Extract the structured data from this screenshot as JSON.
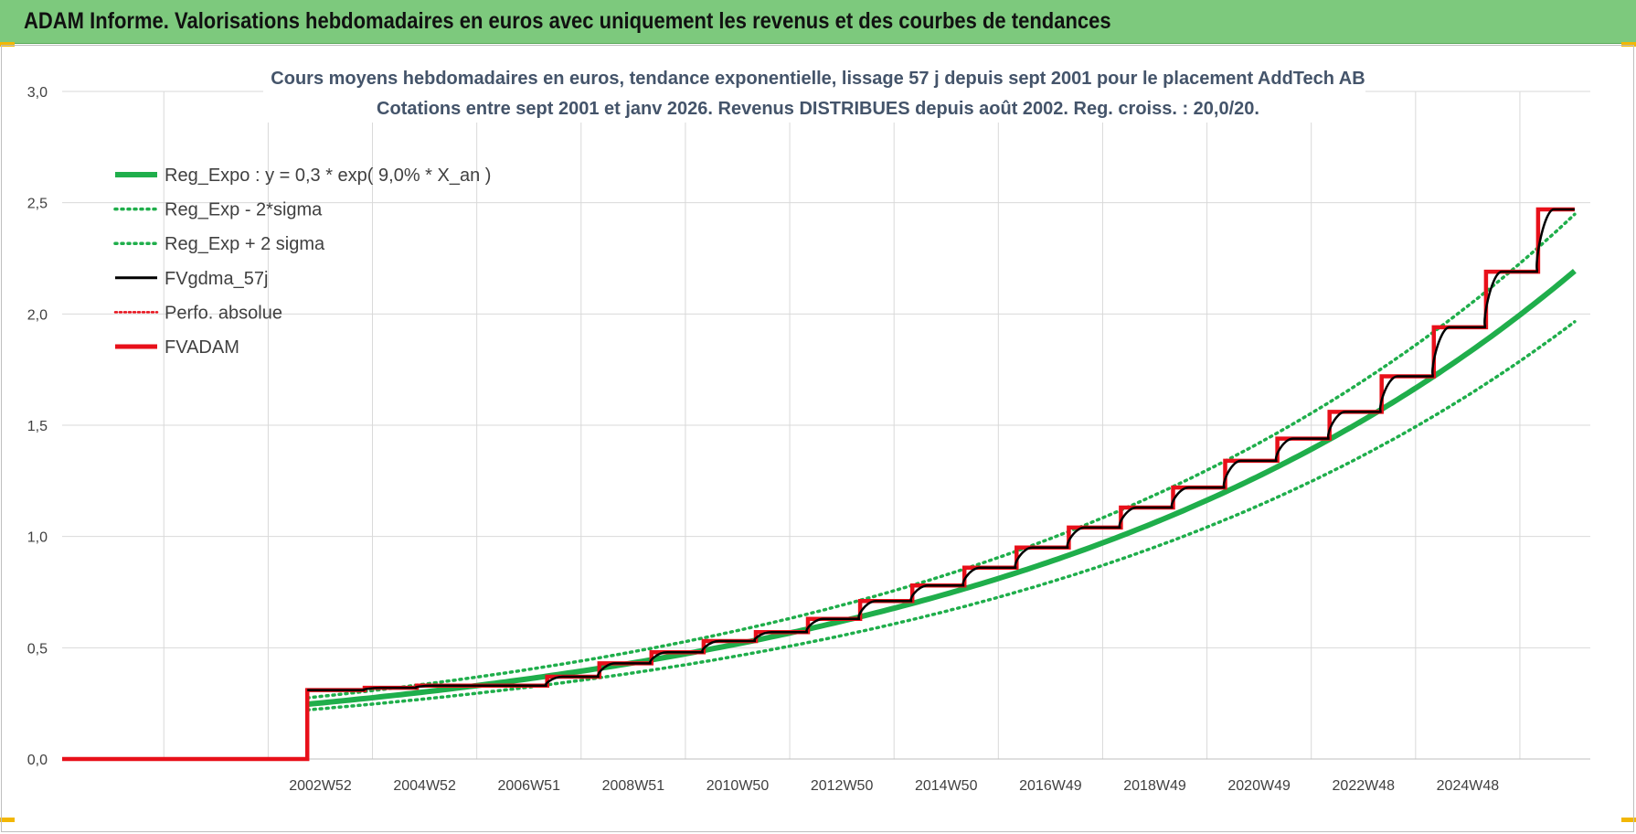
{
  "header": {
    "title": "ADAM Informe. Valorisations hebdomadaires en euros avec uniquement les revenus et des courbes de tendances"
  },
  "chart_data": {
    "type": "line",
    "title": "Cours moyens hebdomadaires en euros, tendance exponentielle, lissage 57 j depuis sept 2001 pour le placement AddTech AB",
    "subtitle": "Cotations entre sept 2001 et janv 2026. Revenus DISTRIBUES depuis août 2002. Reg. croiss. : 20,0/20.",
    "xlabel": "",
    "ylabel": "",
    "ylim": [
      0,
      3
    ],
    "y_ticks": [
      "0,0",
      "0,5",
      "1,0",
      "1,5",
      "2,0",
      "2,5",
      "3,0"
    ],
    "x_tick_labels": [
      "2002W52",
      "2004W52",
      "2006W51",
      "2008W51",
      "2010W50",
      "2012W50",
      "2014W50",
      "2016W49",
      "2018W49",
      "2020W49",
      "2022W48",
      "2024W48"
    ],
    "x_range_years": [
      1998.4,
      2027.7
    ],
    "grid": true,
    "legend_position": "top-left",
    "colors": {
      "green": "#1fae4b",
      "black": "#000000",
      "red": "#e8101a"
    },
    "series": [
      {
        "name": "Reg_Expo : y = 0,3 * exp( 9,0% *  X_an )",
        "style": "solid-thick",
        "color": "#1fae4b",
        "x": [
          2003.1,
          2027.4
        ],
        "y_formula": "0.2462*exp(0.09*(x-2003.1))"
      },
      {
        "name": "Reg_Exp - 2*sigma",
        "style": "dotted",
        "color": "#1fae4b",
        "x": [
          2003.1,
          2027.4
        ],
        "y_formula": "0.2206*exp(0.09*(x-2003.1))"
      },
      {
        "name": "Reg_Exp + 2 sigma",
        "style": "dotted",
        "color": "#1fae4b",
        "x": [
          2003.1,
          2027.4
        ],
        "y_formula": "0.2748*exp(0.09*(x-2003.1))"
      },
      {
        "name": "FVgdma_57j",
        "style": "solid",
        "color": "#000000"
      },
      {
        "name": "Perfo. absolue",
        "style": "dotted",
        "color": "#e8101a"
      },
      {
        "name": "FVADAM",
        "style": "solid-thick",
        "color": "#e8101a",
        "start_x": 1998.4,
        "zero_until": 2003.1,
        "steps": [
          {
            "x": 2003.1,
            "y": 0.31
          },
          {
            "x": 2004.2,
            "y": 0.32
          },
          {
            "x": 2005.2,
            "y": 0.33
          },
          {
            "x": 2007.7,
            "y": 0.37
          },
          {
            "x": 2008.7,
            "y": 0.43
          },
          {
            "x": 2009.7,
            "y": 0.48
          },
          {
            "x": 2010.7,
            "y": 0.53
          },
          {
            "x": 2011.7,
            "y": 0.57
          },
          {
            "x": 2012.7,
            "y": 0.63
          },
          {
            "x": 2013.7,
            "y": 0.71
          },
          {
            "x": 2014.7,
            "y": 0.78
          },
          {
            "x": 2015.7,
            "y": 0.86
          },
          {
            "x": 2016.7,
            "y": 0.95
          },
          {
            "x": 2017.7,
            "y": 1.04
          },
          {
            "x": 2018.7,
            "y": 1.13
          },
          {
            "x": 2019.7,
            "y": 1.22
          },
          {
            "x": 2020.7,
            "y": 1.34
          },
          {
            "x": 2021.7,
            "y": 1.44
          },
          {
            "x": 2022.7,
            "y": 1.56
          },
          {
            "x": 2023.7,
            "y": 1.72
          },
          {
            "x": 2024.7,
            "y": 1.94
          },
          {
            "x": 2025.7,
            "y": 2.19
          },
          {
            "x": 2026.7,
            "y": 2.47
          }
        ],
        "end_x": 2027.4
      }
    ]
  }
}
